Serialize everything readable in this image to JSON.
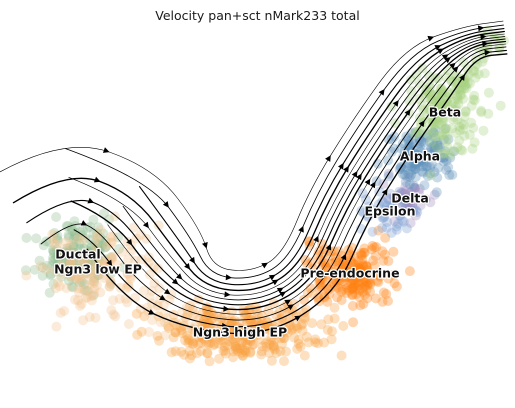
{
  "chart_data": {
    "type": "scatter",
    "title": "Velocity pan+sct nMark233 total",
    "xlabel": "",
    "ylabel": "",
    "axes_visible": false,
    "grid": false,
    "legend": "on data",
    "overlay": "velocity streamlines with arrowheads",
    "clusters": [
      {
        "name": "Ductal",
        "color": "#8fbc8f",
        "center": [
          78,
          255
        ]
      },
      {
        "name": "Ngn3 low EP",
        "color": "#f4c390",
        "center": [
          98,
          270
        ]
      },
      {
        "name": "Ngn3 high EP",
        "color": "#f9a040",
        "center": [
          240,
          333
        ]
      },
      {
        "name": "Pre-endocrine",
        "color": "#ff7f0e",
        "center": [
          350,
          274
        ]
      },
      {
        "name": "Delta",
        "color": "#9e8bbf",
        "center": [
          410,
          199
        ]
      },
      {
        "name": "Epsilon",
        "color": "#7d9fd0",
        "center": [
          390,
          212
        ]
      },
      {
        "name": "Alpha",
        "color": "#5b8fb8",
        "center": [
          420,
          157
        ]
      },
      {
        "name": "Beta",
        "color": "#a8d07e",
        "center": [
          445,
          113
        ]
      }
    ]
  }
}
